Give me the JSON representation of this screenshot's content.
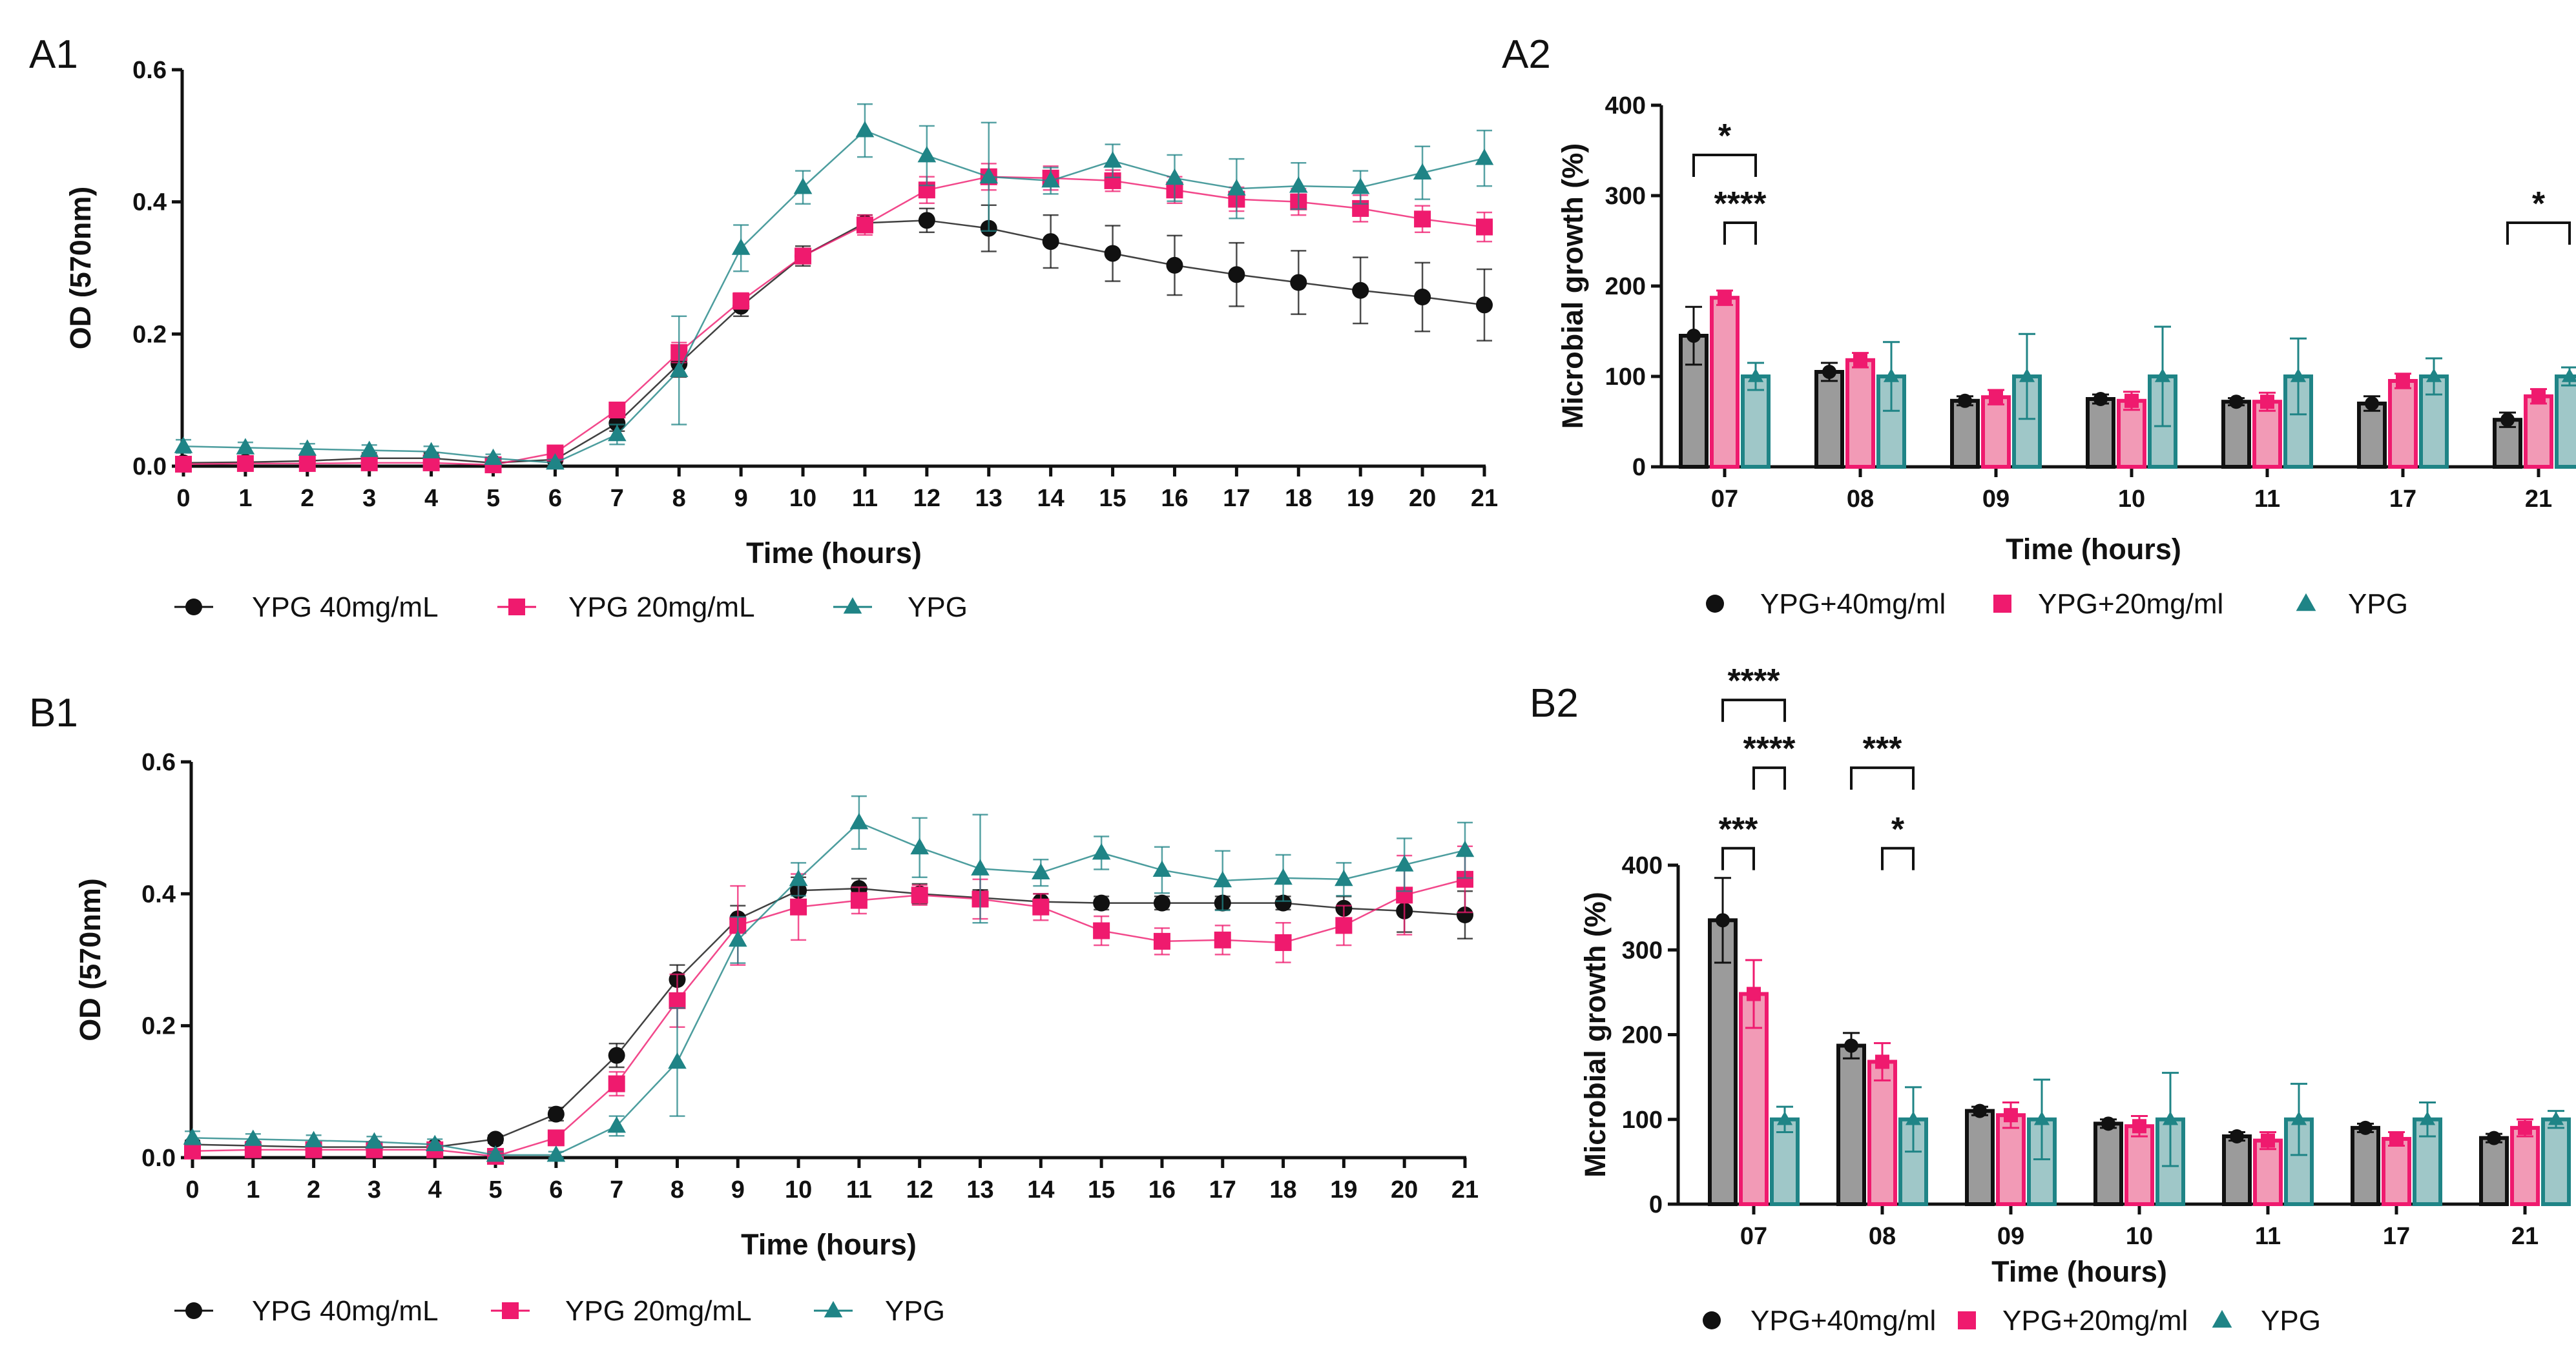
{
  "figure": {
    "colors": {
      "black": "#111111",
      "pink": "#ef1a6e",
      "teal": "#1f8486"
    }
  },
  "chart_data": [
    {
      "id": "A1",
      "label": "A1",
      "type": "line",
      "xlabel": "Time (hours)",
      "ylabel": "OD (570nm)",
      "ylim": [
        0,
        0.6
      ],
      "yticks": [
        "0.0",
        "0.2",
        "0.4",
        "0.6"
      ],
      "x": [
        0,
        1,
        2,
        3,
        4,
        5,
        6,
        7,
        8,
        9,
        10,
        11,
        12,
        13,
        14,
        15,
        16,
        17,
        18,
        19,
        20,
        21
      ],
      "series": [
        {
          "name": "YPG 40mg/mL",
          "color": "#111111",
          "marker": "circle",
          "values": [
            0.005,
            0.006,
            0.008,
            0.012,
            0.012,
            0.005,
            0.01,
            0.065,
            0.155,
            0.242,
            0.318,
            0.368,
            0.372,
            0.36,
            0.34,
            0.322,
            0.304,
            0.29,
            0.278,
            0.266,
            0.256,
            0.244
          ],
          "errors": [
            0.003,
            0.004,
            0.005,
            0.008,
            0.008,
            0.004,
            0.005,
            0.012,
            0.02,
            0.015,
            0.015,
            0.012,
            0.018,
            0.035,
            0.04,
            0.042,
            0.045,
            0.048,
            0.048,
            0.05,
            0.052,
            0.054
          ]
        },
        {
          "name": "YPG 20mg/mL",
          "color": "#ef1a6e",
          "marker": "square",
          "values": [
            0.003,
            0.004,
            0.004,
            0.005,
            0.005,
            0.002,
            0.02,
            0.085,
            0.172,
            0.25,
            0.318,
            0.365,
            0.418,
            0.438,
            0.436,
            0.432,
            0.418,
            0.404,
            0.4,
            0.39,
            0.374,
            0.362
          ],
          "errors": [
            0.003,
            0.003,
            0.003,
            0.004,
            0.004,
            0.003,
            0.006,
            0.01,
            0.015,
            0.012,
            0.01,
            0.015,
            0.02,
            0.02,
            0.018,
            0.016,
            0.02,
            0.018,
            0.02,
            0.02,
            0.02,
            0.022
          ]
        },
        {
          "name": "YPG",
          "color": "#1f8486",
          "marker": "triangle",
          "values": [
            0.03,
            0.028,
            0.026,
            0.024,
            0.022,
            0.012,
            0.005,
            0.048,
            0.145,
            0.33,
            0.422,
            0.508,
            0.47,
            0.438,
            0.432,
            0.462,
            0.436,
            0.42,
            0.424,
            0.422,
            0.444,
            0.466
          ],
          "errors": [
            0.01,
            0.008,
            0.008,
            0.008,
            0.008,
            0.006,
            0.005,
            0.015,
            0.082,
            0.035,
            0.025,
            0.04,
            0.045,
            0.082,
            0.02,
            0.025,
            0.035,
            0.045,
            0.035,
            0.025,
            0.04,
            0.042
          ]
        }
      ]
    },
    {
      "id": "A2",
      "label": "A2",
      "type": "bar",
      "xlabel": "Time (hours)",
      "ylabel": "Microbial growth (%)",
      "ylim": [
        0,
        400
      ],
      "yticks": [
        "0",
        "100",
        "200",
        "300",
        "400"
      ],
      "categories": [
        "07",
        "08",
        "09",
        "10",
        "11",
        "17",
        "21"
      ],
      "series": [
        {
          "name": "YPG+40mg/ml",
          "color": "#111111",
          "fill": "#9b9b9b",
          "values": [
            145,
            105,
            73,
            75,
            72,
            70,
            52
          ],
          "errors": [
            32,
            10,
            5,
            5,
            4,
            8,
            8
          ]
        },
        {
          "name": "YPG+20mg/ml",
          "color": "#ef1a6e",
          "fill": "#f29ab6",
          "values": [
            187,
            118,
            77,
            73,
            72,
            95,
            78
          ],
          "errors": [
            8,
            8,
            8,
            10,
            10,
            8,
            8
          ]
        },
        {
          "name": "YPG",
          "color": "#1f8486",
          "fill": "#9fc7c8",
          "values": [
            100,
            100,
            100,
            100,
            100,
            100,
            100
          ],
          "errors": [
            15,
            38,
            47,
            55,
            42,
            20,
            10
          ]
        }
      ],
      "significance": [
        {
          "label": "*",
          "from": [
            0,
            0
          ],
          "to": [
            0,
            2
          ],
          "level": 345
        },
        {
          "label": "****",
          "from": [
            0,
            1
          ],
          "to": [
            0,
            2
          ],
          "level": 270
        },
        {
          "label": "*",
          "from": [
            6,
            0
          ],
          "to": [
            6,
            2
          ],
          "level": 270
        }
      ]
    },
    {
      "id": "B1",
      "label": "B1",
      "type": "line",
      "xlabel": "Time (hours)",
      "ylabel": "OD (570nm)",
      "ylim": [
        0,
        0.6
      ],
      "yticks": [
        "0.0",
        "0.2",
        "0.4",
        "0.6"
      ],
      "x": [
        0,
        1,
        2,
        3,
        4,
        5,
        6,
        7,
        8,
        9,
        10,
        11,
        12,
        13,
        14,
        15,
        16,
        17,
        18,
        19,
        20,
        21
      ],
      "series": [
        {
          "name": "YPG 40mg/mL",
          "color": "#111111",
          "marker": "circle",
          "values": [
            0.02,
            0.018,
            0.016,
            0.016,
            0.016,
            0.028,
            0.066,
            0.155,
            0.27,
            0.362,
            0.405,
            0.408,
            0.4,
            0.394,
            0.388,
            0.386,
            0.386,
            0.386,
            0.386,
            0.378,
            0.374,
            0.368
          ],
          "errors": [
            0.006,
            0.006,
            0.005,
            0.005,
            0.005,
            0.006,
            0.01,
            0.018,
            0.022,
            0.02,
            0.02,
            0.015,
            0.015,
            0.012,
            0.012,
            0.01,
            0.01,
            0.01,
            0.01,
            0.018,
            0.032,
            0.036
          ]
        },
        {
          "name": "YPG 20mg/mL",
          "color": "#ef1a6e",
          "marker": "square",
          "values": [
            0.01,
            0.012,
            0.012,
            0.012,
            0.012,
            0.002,
            0.03,
            0.112,
            0.238,
            0.352,
            0.38,
            0.39,
            0.398,
            0.392,
            0.38,
            0.344,
            0.328,
            0.33,
            0.326,
            0.352,
            0.398,
            0.422
          ],
          "errors": [
            0.005,
            0.005,
            0.005,
            0.005,
            0.005,
            0.004,
            0.008,
            0.018,
            0.04,
            0.06,
            0.05,
            0.02,
            0.015,
            0.03,
            0.02,
            0.022,
            0.02,
            0.022,
            0.03,
            0.03,
            0.06,
            0.05
          ]
        },
        {
          "name": "YPG",
          "color": "#1f8486",
          "marker": "triangle",
          "values": [
            0.03,
            0.028,
            0.026,
            0.024,
            0.02,
            0.004,
            0.004,
            0.048,
            0.145,
            0.33,
            0.422,
            0.508,
            0.47,
            0.438,
            0.432,
            0.462,
            0.436,
            0.42,
            0.424,
            0.422,
            0.444,
            0.466
          ],
          "errors": [
            0.01,
            0.008,
            0.008,
            0.008,
            0.008,
            0.005,
            0.005,
            0.015,
            0.082,
            0.035,
            0.025,
            0.04,
            0.045,
            0.082,
            0.02,
            0.025,
            0.035,
            0.045,
            0.035,
            0.025,
            0.04,
            0.042
          ]
        }
      ]
    },
    {
      "id": "B2",
      "label": "B2",
      "type": "bar",
      "xlabel": "Time (hours)",
      "ylabel": "Microbial growth (%)",
      "ylim": [
        0,
        400
      ],
      "yticks": [
        "0",
        "100",
        "200",
        "300",
        "400"
      ],
      "categories": [
        "07",
        "08",
        "09",
        "10",
        "11",
        "17",
        "21"
      ],
      "series": [
        {
          "name": "YPG+40mg/ml",
          "color": "#111111",
          "fill": "#9b9b9b",
          "values": [
            335,
            187,
            110,
            95,
            80,
            90,
            78
          ],
          "errors": [
            50,
            15,
            5,
            5,
            5,
            5,
            5
          ]
        },
        {
          "name": "YPG+20mg/ml",
          "color": "#ef1a6e",
          "fill": "#f29ab6",
          "values": [
            248,
            168,
            105,
            92,
            75,
            77,
            90
          ],
          "errors": [
            40,
            22,
            15,
            12,
            10,
            8,
            10
          ]
        },
        {
          "name": "YPG",
          "color": "#1f8486",
          "fill": "#9fc7c8",
          "values": [
            100,
            100,
            100,
            100,
            100,
            100,
            100
          ],
          "errors": [
            15,
            38,
            47,
            55,
            42,
            20,
            10
          ]
        }
      ],
      "significance": [
        {
          "label": "****",
          "from": [
            0,
            0
          ],
          "to": [
            0,
            2
          ],
          "level": 595
        },
        {
          "label": "****",
          "from": [
            0,
            1
          ],
          "to": [
            0,
            2
          ],
          "level": 515
        },
        {
          "label": "***",
          "from": [
            0,
            0
          ],
          "to": [
            0,
            1
          ],
          "level": 420
        },
        {
          "label": "***",
          "from": [
            1,
            0
          ],
          "to": [
            1,
            2
          ],
          "level": 515
        },
        {
          "label": "*",
          "from": [
            1,
            1
          ],
          "to": [
            1,
            2
          ],
          "level": 420
        }
      ]
    }
  ]
}
